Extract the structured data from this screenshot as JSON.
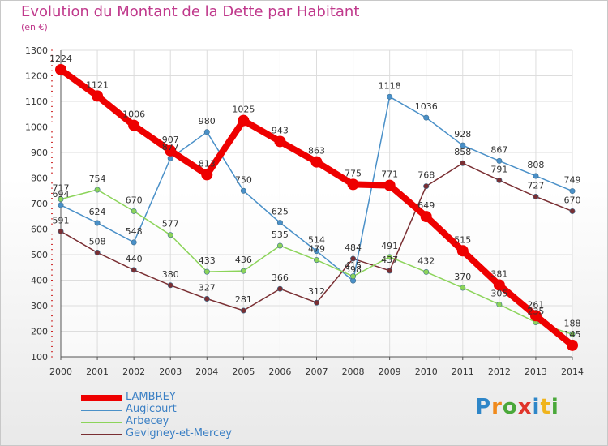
{
  "title": "Evolution du Montant de la Dette par Habitant",
  "subtitle": "(en €)",
  "logo": {
    "text": "Proxiti",
    "letters": [
      {
        "ch": "P",
        "color": "#2e86c8"
      },
      {
        "ch": "r",
        "color": "#f08a1c"
      },
      {
        "ch": "o",
        "color": "#4aa83a"
      },
      {
        "ch": "x",
        "color": "#e0352b"
      },
      {
        "ch": "i",
        "color": "#2e86c8"
      },
      {
        "ch": "t",
        "color": "#f0b41c"
      },
      {
        "ch": "i",
        "color": "#4aa83a"
      }
    ]
  },
  "chart_data": {
    "type": "line",
    "title": "Evolution du Montant de la Dette par Habitant",
    "subtitle": "(en €)",
    "x": [
      "2000",
      "2001",
      "2002",
      "2003",
      "2004",
      "2005",
      "2006",
      "2007",
      "2008",
      "2009",
      "2010",
      "2011",
      "2012",
      "2013",
      "2014"
    ],
    "ylim": [
      100,
      1300
    ],
    "yticks": [
      100,
      200,
      300,
      400,
      500,
      600,
      700,
      800,
      900,
      1000,
      1100,
      1200,
      1300
    ],
    "grid": true,
    "legend_position": "bottom-left",
    "series": [
      {
        "name": "LAMBREY",
        "color": "#ee0000",
        "values": [
          1224,
          1121,
          1006,
          907,
          813,
          1025,
          943,
          863,
          775,
          771,
          649,
          515,
          381,
          261,
          145
        ],
        "labels": [
          "1224",
          "1121",
          "1006",
          "907",
          "813",
          "1025",
          "943",
          "863",
          "775",
          "771",
          "649",
          "515",
          "381",
          "261",
          "145"
        ]
      },
      {
        "name": "Augicourt",
        "color": "#4a90c8",
        "values": [
          694,
          624,
          548,
          877,
          980,
          750,
          625,
          514,
          398,
          1118,
          1036,
          928,
          867,
          808,
          749
        ],
        "labels": [
          "694",
          "624",
          "548",
          "877",
          "980",
          "750",
          "625",
          "514",
          "398",
          "1118",
          "1036",
          "928",
          "867",
          "808",
          "749"
        ]
      },
      {
        "name": "Arbecey",
        "color": "#8cd45a",
        "values": [
          717,
          754,
          670,
          577,
          433,
          436,
          535,
          479,
          415,
          491,
          432,
          370,
          305,
          235,
          188
        ],
        "labels": [
          "717",
          "754",
          "670",
          "577",
          "433",
          "436",
          "535",
          "479",
          "415",
          "491",
          "432",
          "370",
          "305",
          "235",
          "188"
        ]
      },
      {
        "name": "Gevigney-et-Mercey",
        "color": "#7a2f33",
        "values": [
          591,
          508,
          440,
          380,
          327,
          281,
          366,
          312,
          484,
          437,
          768,
          858,
          791,
          727,
          670
        ],
        "labels": [
          "591",
          "508",
          "440",
          "380",
          "327",
          "281",
          "366",
          "312",
          "484",
          "437",
          "768",
          "858",
          "791",
          "727",
          "670"
        ]
      }
    ]
  }
}
